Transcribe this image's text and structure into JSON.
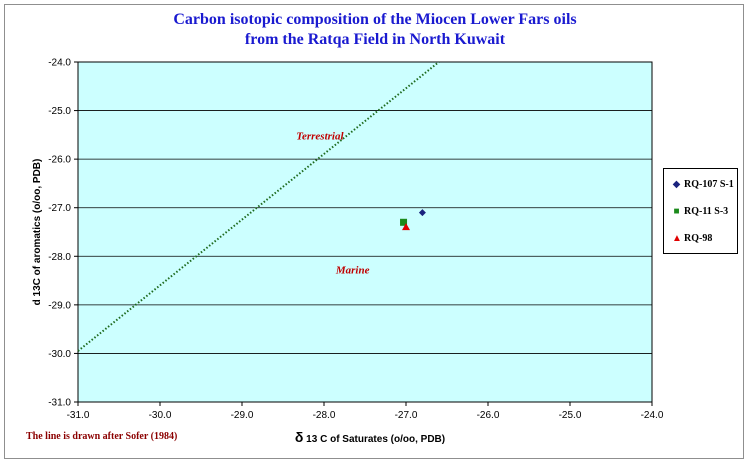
{
  "chart_data": {
    "type": "scatter",
    "title": "Carbon isotopic composition of the Miocen Lower Fars oils",
    "subtitle": "from the Ratqa Field in North Kuwait",
    "xlabel_symbol": "δ",
    "xlabel": " 13 C of Saturates (o/oo, PDB)",
    "ylabel": "d 13C of aromatics (o/oo, PDB)",
    "xlim": [
      -31.0,
      -24.0
    ],
    "ylim": [
      -31.0,
      -24.0
    ],
    "xticks": [
      -31.0,
      -30.0,
      -29.0,
      -28.0,
      -27.0,
      -26.0,
      -25.0,
      -24.0
    ],
    "yticks": [
      -31.0,
      -30.0,
      -29.0,
      -28.0,
      -27.0,
      -26.0,
      -25.0,
      -24.0
    ],
    "grid": "horizontal",
    "plot_background": "#ccffff",
    "series": [
      {
        "name": "RQ-107 S-1",
        "marker": "diamond",
        "color": "#1a237e",
        "x": [
          -26.8
        ],
        "y": [
          -27.1
        ]
      },
      {
        "name": "RQ-11 S-3",
        "marker": "square",
        "color": "#1b8a1b",
        "x": [
          -27.03
        ],
        "y": [
          -27.3
        ]
      },
      {
        "name": "RQ-98",
        "marker": "triangle",
        "color": "#e00000",
        "x": [
          -27.0
        ],
        "y": [
          -27.4
        ]
      }
    ],
    "reference_line": {
      "style": "dotted",
      "color": "#1f6b1f",
      "points": [
        [
          -31.0,
          -29.95
        ],
        [
          -26.6,
          -24.0
        ]
      ]
    },
    "annotations": [
      {
        "text": "Terrestrial",
        "x": -28.05,
        "y": -25.6
      },
      {
        "text": "Marine",
        "x": -27.65,
        "y": -28.35
      }
    ],
    "legend_position": "right",
    "note": "The line is drawn after Sofer (1984)"
  }
}
